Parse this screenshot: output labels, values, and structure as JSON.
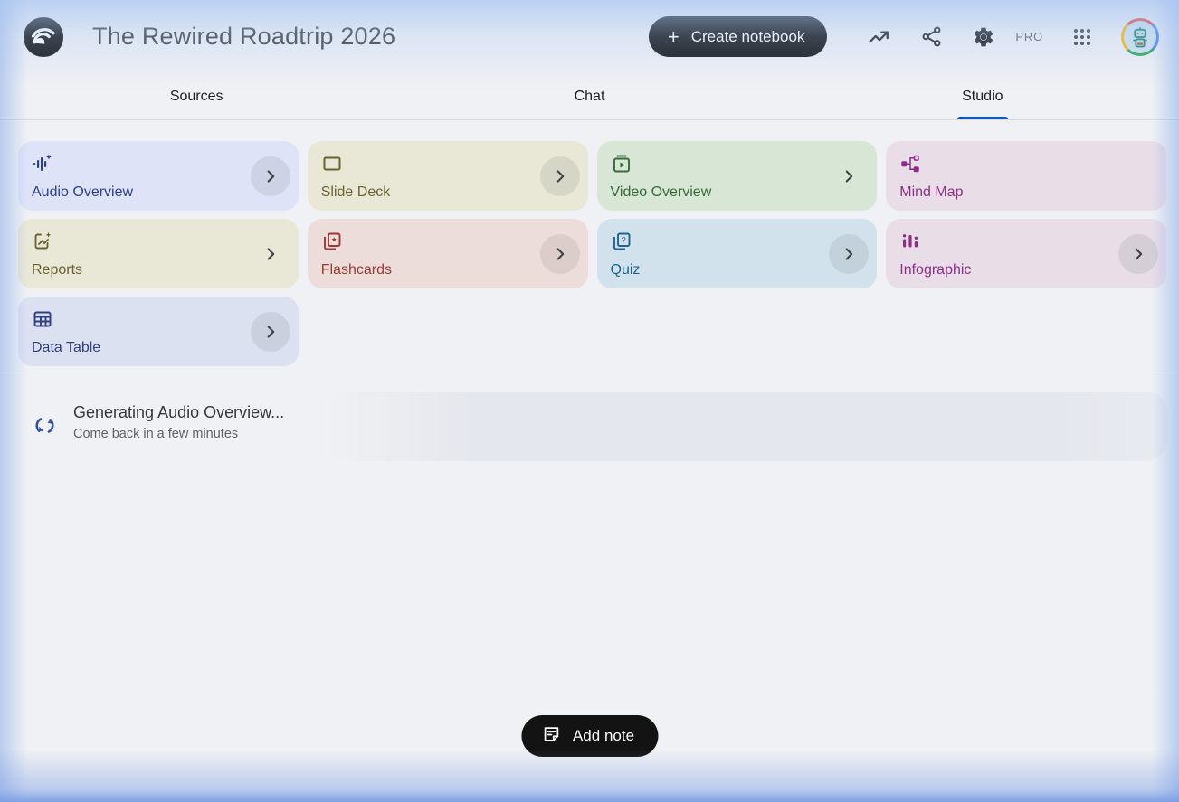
{
  "header": {
    "logo_icon": "notebooklm-logo-icon",
    "title": "The Rewired Roadtrip 2026",
    "create_notebook": {
      "plus": "+",
      "label": "Create notebook"
    },
    "pro_badge": "PRO",
    "action_icons": [
      "trending-up-icon",
      "share-icon",
      "settings-gear-icon",
      "apps-grid-icon"
    ],
    "avatar": "robot-profile-avatar"
  },
  "tabs": [
    {
      "label": "Sources",
      "active": false
    },
    {
      "label": "Chat",
      "active": false
    },
    {
      "label": "Studio",
      "active": true
    }
  ],
  "colors": {
    "active_tab_underline": "#0b57d0",
    "button_black": "#131313",
    "page_background": "#f0f1f4",
    "edge_glow_blue": "#7a9de4"
  },
  "studio": {
    "cards": [
      {
        "label": "Audio Overview",
        "icon": "audio-waveform-sparkle-icon",
        "bg": "#dee3f8",
        "fg": "#2c3f90",
        "chevron": "circle"
      },
      {
        "label": "Slide Deck",
        "icon": "slide-deck-icon",
        "bg": "#e9e7d6",
        "fg": "#6a6430",
        "chevron": "circle"
      },
      {
        "label": "Video Overview",
        "icon": "video-overview-icon",
        "bg": "#d8e7d5",
        "fg": "#38693b",
        "chevron": "plain"
      },
      {
        "label": "Mind Map",
        "icon": "mind-map-icon",
        "bg": "#e9dee8",
        "fg": "#8e2f87",
        "chevron": "none"
      },
      {
        "label": "Reports",
        "icon": "reports-sparkle-icon",
        "bg": "#e9e7d6",
        "fg": "#6a6430",
        "chevron": "plain"
      },
      {
        "label": "Flashcards",
        "icon": "flashcards-icon",
        "bg": "#edddda",
        "fg": "#9e3a33",
        "chevron": "circle"
      },
      {
        "label": "Quiz",
        "icon": "quiz-cards-icon",
        "bg": "#d2e2ec",
        "fg": "#1f6391",
        "chevron": "circle"
      },
      {
        "label": "Infographic",
        "icon": "infographic-bars-icon",
        "bg": "#e9dee8",
        "fg": "#8e2f87",
        "chevron": "circle"
      },
      {
        "label": "Data Table",
        "icon": "data-table-icon",
        "bg": "#dce1f2",
        "fg": "#2f4084",
        "chevron": "circle"
      }
    ]
  },
  "status": {
    "icon": "sync-refresh-icon",
    "title": "Generating Audio Overview...",
    "subtitle": "Come back in a few minutes"
  },
  "footer": {
    "add_note": {
      "icon": "note-icon",
      "label": "Add note"
    }
  }
}
